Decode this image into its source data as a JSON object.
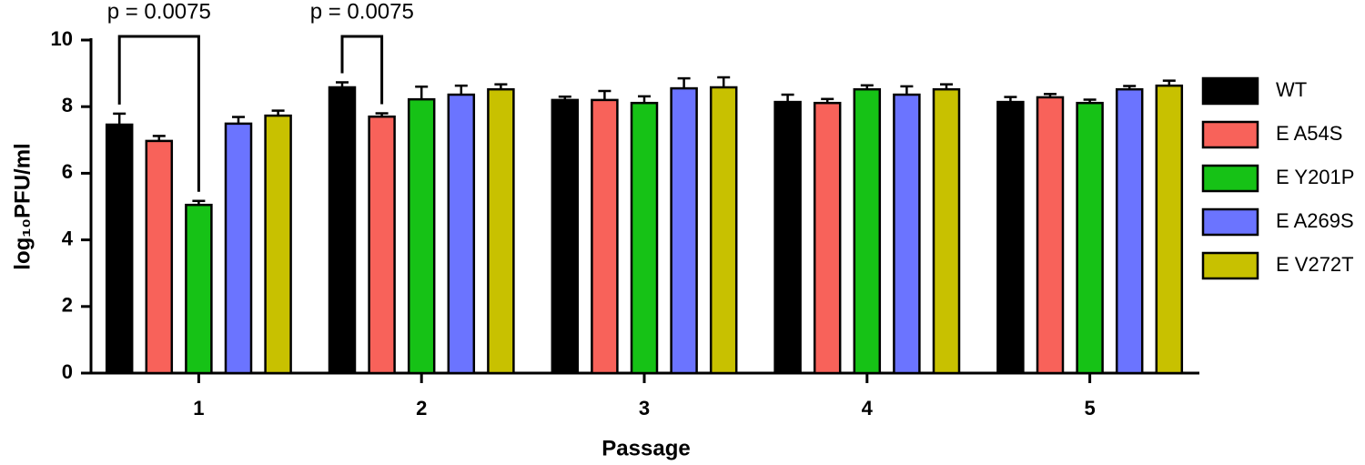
{
  "chart_data": {
    "type": "bar",
    "x_label": "Passage",
    "y_label": "log₁₀PFU/ml",
    "categories": [
      "1",
      "2",
      "3",
      "4",
      "5"
    ],
    "series": [
      {
        "name": "WT",
        "color": "#000000",
        "values": [
          7.46,
          8.58,
          8.2,
          8.14,
          8.14
        ],
        "errors": [
          0.33,
          0.15,
          0.1,
          0.22,
          0.15
        ]
      },
      {
        "name": "E A54S",
        "color": "#f8625a",
        "values": [
          6.97,
          7.7,
          8.2,
          8.11,
          8.28
        ],
        "errors": [
          0.15,
          0.1,
          0.27,
          0.12,
          0.1
        ]
      },
      {
        "name": "E Y201P",
        "color": "#16c216",
        "values": [
          5.05,
          8.22,
          8.11,
          8.52,
          8.11
        ],
        "errors": [
          0.12,
          0.38,
          0.2,
          0.12,
          0.1
        ]
      },
      {
        "name": "E A269S",
        "color": "#6b74ff",
        "values": [
          7.49,
          8.36,
          8.55,
          8.36,
          8.52
        ],
        "errors": [
          0.2,
          0.27,
          0.3,
          0.25,
          0.1
        ]
      },
      {
        "name": "E V272T",
        "color": "#c8c100",
        "values": [
          7.73,
          8.52,
          8.58,
          8.52,
          8.63
        ],
        "errors": [
          0.15,
          0.15,
          0.3,
          0.15,
          0.15
        ]
      }
    ],
    "annotations": [
      "p = 0.0075",
      "p = 0.0075"
    ],
    "ylim": [
      0,
      10
    ],
    "yticks": [
      0,
      2,
      4,
      6,
      8,
      10
    ],
    "legend": "right"
  }
}
